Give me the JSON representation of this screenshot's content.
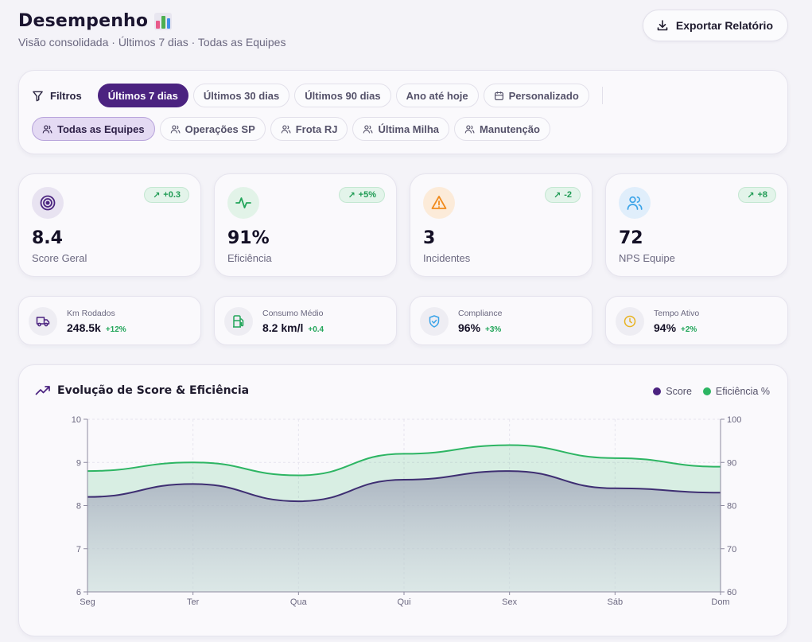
{
  "header": {
    "title": "Desempenho",
    "subtitle": "Visão consolidada · Últimos 7 dias · Todas as Equipes",
    "export_label": "Exportar Relatório"
  },
  "filters": {
    "label": "Filtros",
    "periods": [
      "Últimos 7 dias",
      "Últimos 30 dias",
      "Últimos 90 dias",
      "Ano até hoje",
      "Personalizado"
    ],
    "active_period": "Últimos 7 dias",
    "teams": [
      "Todas as Equipes",
      "Operações SP",
      "Frota RJ",
      "Última Milha",
      "Manutenção"
    ],
    "active_team": "Todas as Equipes"
  },
  "stats": [
    {
      "value": "8.4",
      "label": "Score Geral",
      "delta": "+0.3",
      "icon": "target-icon"
    },
    {
      "value": "91%",
      "label": "Eficiência",
      "delta": "+5%",
      "icon": "activity-icon"
    },
    {
      "value": "3",
      "label": "Incidentes",
      "delta": "-2",
      "icon": "warning-icon"
    },
    {
      "value": "72",
      "label": "NPS Equipe",
      "delta": "+8",
      "icon": "users-icon"
    }
  ],
  "minis": [
    {
      "label": "Km Rodados",
      "value": "248.5k",
      "delta": "+12%",
      "icon": "truck-icon"
    },
    {
      "label": "Consumo Médio",
      "value": "8.2 km/l",
      "delta": "+0.4",
      "icon": "fuel-icon"
    },
    {
      "label": "Compliance",
      "value": "96%",
      "delta": "+3%",
      "icon": "shield-icon"
    },
    {
      "label": "Tempo Ativo",
      "value": "94%",
      "delta": "+2%",
      "icon": "clock-icon"
    }
  ],
  "chart": {
    "title": "Evolução de Score & Eficiência",
    "legend": [
      "Score",
      "Eficiência %"
    ]
  },
  "colors": {
    "primary": "#4b2380",
    "score": "#4a3a7c",
    "efficiency": "#2db563",
    "positive": "#1f9b54"
  },
  "chart_data": {
    "type": "area",
    "title": "Evolução de Score & Eficiência",
    "categories": [
      "Seg",
      "Ter",
      "Qua",
      "Qui",
      "Sex",
      "Sáb",
      "Dom"
    ],
    "series": [
      {
        "name": "Score",
        "axis": "left",
        "values": [
          8.2,
          8.5,
          8.1,
          8.6,
          8.8,
          8.4,
          8.3
        ]
      },
      {
        "name": "Eficiência %",
        "axis": "right",
        "values": [
          88,
          90,
          87,
          92,
          94,
          91,
          89
        ]
      }
    ],
    "y_left": {
      "range": [
        6,
        10
      ],
      "ticks": [
        6,
        7,
        8,
        9,
        10
      ]
    },
    "y_right": {
      "range": [
        60,
        100
      ],
      "ticks": [
        60,
        70,
        80,
        90,
        100
      ]
    },
    "grid": true,
    "legend_position": "top-right"
  }
}
